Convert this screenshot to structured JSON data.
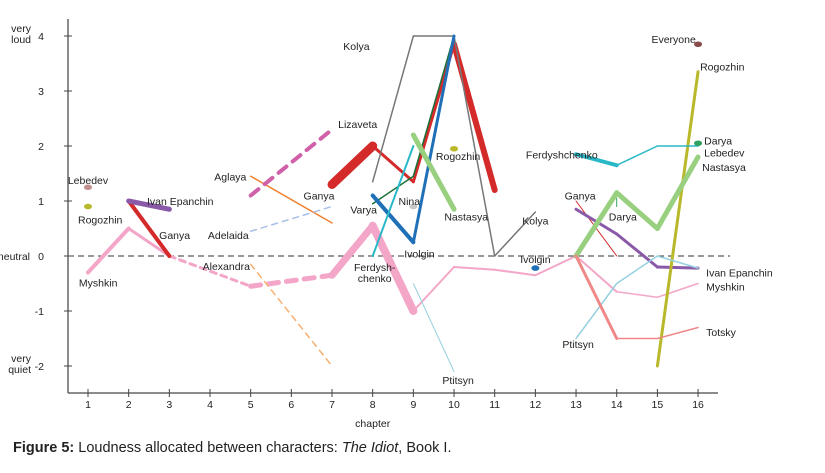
{
  "chart_data": {
    "type": "line",
    "title": "",
    "xlabel": "chapter",
    "ylabel": "",
    "xlim": [
      0.6,
      16.9
    ],
    "ylim": [
      -2.4,
      4.3
    ],
    "x_ticks": [
      1,
      2,
      3,
      4,
      5,
      6,
      7,
      8,
      9,
      10,
      11,
      12,
      13,
      14,
      15,
      16
    ],
    "y_ticks": [
      {
        "value": 4,
        "label": "4",
        "annotation": "very\nloud"
      },
      {
        "value": 3,
        "label": "3",
        "annotation": ""
      },
      {
        "value": 2,
        "label": "2",
        "annotation": ""
      },
      {
        "value": 1,
        "label": "1",
        "annotation": ""
      },
      {
        "value": 0,
        "label": "0",
        "annotation": "neutral"
      },
      {
        "value": -1,
        "label": "-1",
        "annotation": ""
      },
      {
        "value": -2,
        "label": "-2",
        "annotation": "very\nquiet"
      }
    ],
    "reference_line": {
      "value": 0,
      "style": "dashed"
    },
    "series": [
      {
        "name": "Myshkin",
        "color": "#f3a6c8",
        "points": [
          [
            1,
            -0.3
          ],
          [
            2,
            0.5
          ],
          [
            3,
            0
          ],
          [
            5,
            -0.55
          ],
          [
            7,
            -0.35
          ],
          [
            8,
            0.55
          ],
          [
            9,
            -1.0
          ],
          [
            10,
            -0.2
          ],
          [
            11,
            -0.25
          ],
          [
            12,
            -0.35
          ],
          [
            13,
            0
          ],
          [
            14,
            -0.65
          ],
          [
            15,
            -0.75
          ],
          [
            16,
            -0.5
          ]
        ],
        "widths": [
          4,
          3,
          3,
          5,
          7,
          8,
          2,
          2,
          2,
          2,
          2,
          1.5,
          1.5
        ],
        "dashed_segments": [
          2,
          3
        ]
      },
      {
        "name": "Ganya",
        "color": "#d42a2a",
        "points": [
          [
            2,
            1
          ],
          [
            3,
            0
          ]
        ],
        "widths": [
          4
        ]
      },
      {
        "name": "Ganya",
        "color": "#d42a2a",
        "points": [
          [
            7,
            1.3
          ],
          [
            8,
            2
          ],
          [
            9,
            1.35
          ],
          [
            10,
            3.85
          ],
          [
            11,
            1.2
          ]
        ],
        "widths": [
          9,
          3,
          3,
          6
        ]
      },
      {
        "name": "Ganya",
        "color": "#d42a2a",
        "points": [
          [
            13,
            1
          ],
          [
            14,
            0
          ]
        ],
        "widths": [
          1
        ]
      },
      {
        "name": "Ivan Epanchin",
        "color": "#8a5aa8",
        "points": [
          [
            2,
            1
          ],
          [
            3,
            0.85
          ]
        ],
        "widths": [
          5
        ]
      },
      {
        "name": "Ivan Epanchin",
        "color": "#8a5aa8",
        "points": [
          [
            13,
            0.85
          ],
          [
            14,
            0.4
          ],
          [
            15,
            -0.2
          ],
          [
            16,
            -0.22
          ]
        ],
        "widths": [
          3,
          3,
          3
        ]
      },
      {
        "name": "Lebedev",
        "color": "#c49090",
        "points": [
          [
            1,
            1.25
          ]
        ],
        "widths": []
      },
      {
        "name": "Rogozhin",
        "color": "#b8b82a",
        "points": [
          [
            1,
            0.9
          ]
        ],
        "widths": []
      },
      {
        "name": "Rogozhin",
        "color": "#b8b82a",
        "points": [
          [
            10,
            1.95
          ]
        ],
        "widths": []
      },
      {
        "name": "Rogozhin",
        "color": "#b8b82a",
        "points": [
          [
            15,
            -2
          ],
          [
            16,
            3.35
          ]
        ],
        "widths": [
          3
        ]
      },
      {
        "name": "Aglaya",
        "color": "#f08030",
        "points": [
          [
            5,
            1.45
          ],
          [
            7,
            0.6
          ]
        ],
        "widths": [
          1.5
        ]
      },
      {
        "name": "Lizaveta",
        "color": "#d060a8",
        "points": [
          [
            5,
            1.1
          ],
          [
            7,
            2.3
          ]
        ],
        "widths": [
          4
        ],
        "dashed_segments": [
          0
        ]
      },
      {
        "name": "Adelaida",
        "color": "#a8c0e8",
        "points": [
          [
            5,
            0.45
          ],
          [
            7,
            0.9
          ]
        ],
        "widths": [
          1.5
        ],
        "dashed_segments": [
          0
        ]
      },
      {
        "name": "Alexandra",
        "color": "#f8b070",
        "points": [
          [
            5,
            -0.15
          ],
          [
            7,
            -2.0
          ]
        ],
        "widths": [
          1.5
        ],
        "dashed_segments": [
          0
        ]
      },
      {
        "name": "Kolya",
        "color": "#777777",
        "points": [
          [
            8,
            1.35
          ],
          [
            9,
            4
          ],
          [
            10,
            4
          ],
          [
            11,
            0
          ],
          [
            12,
            0.8
          ]
        ],
        "widths": [
          1.5,
          1.5,
          1.5,
          1.5
        ]
      },
      {
        "name": "Varya",
        "color": "#1a7038",
        "points": [
          [
            8,
            0.95
          ],
          [
            9,
            1.45
          ],
          [
            10,
            4
          ]
        ],
        "widths": [
          1.5,
          1.5
        ]
      },
      {
        "name": "Ivolgin",
        "color": "#2070b8",
        "points": [
          [
            8,
            1.1
          ],
          [
            9,
            0.25
          ],
          [
            10,
            4
          ]
        ],
        "widths": [
          4,
          3
        ]
      },
      {
        "name": "Ivolgin",
        "color": "#2070b8",
        "points": [
          [
            12,
            -0.22
          ]
        ],
        "widths": []
      },
      {
        "name": "Ferdyshchenko",
        "color": "#28b8c8",
        "points": [
          [
            8,
            0
          ],
          [
            9,
            2
          ]
        ],
        "widths": [
          2
        ]
      },
      {
        "name": "Ferdyshchenko",
        "color": "#28b8c8",
        "points": [
          [
            13,
            1.85
          ],
          [
            14,
            1.65
          ],
          [
            15,
            2
          ],
          [
            16,
            2
          ]
        ],
        "widths": [
          4,
          1.5,
          1.5
        ]
      },
      {
        "name": "Nina",
        "color": "#c8c8c8",
        "points": [
          [
            9,
            0.9
          ]
        ],
        "widths": []
      },
      {
        "name": "Nastasya",
        "color": "#98d080",
        "points": [
          [
            9,
            2.2
          ],
          [
            10,
            0.85
          ]
        ],
        "widths": [
          5
        ]
      },
      {
        "name": "Nastasya",
        "color": "#98d080",
        "points": [
          [
            13,
            0
          ],
          [
            14,
            1.15
          ],
          [
            15,
            0.5
          ],
          [
            16,
            1.8
          ]
        ],
        "widths": [
          5,
          5,
          5
        ]
      },
      {
        "name": "Ptitsyn",
        "color": "#98d0e0",
        "points": [
          [
            9,
            -0.5
          ],
          [
            10,
            -2.1
          ]
        ],
        "widths": [
          1
        ]
      },
      {
        "name": "Ptitsyn",
        "color": "#98d0e0",
        "points": [
          [
            13,
            -1.5
          ],
          [
            14,
            -0.5
          ],
          [
            15,
            0
          ],
          [
            16,
            -0.22
          ]
        ],
        "widths": [
          1.5,
          1.5,
          1.5
        ]
      },
      {
        "name": "Darya",
        "color": "#30a060",
        "points": [
          [
            14,
            1.05
          ],
          [
            14,
            0.9
          ]
        ],
        "widths": [
          1
        ]
      },
      {
        "name": "Darya",
        "color": "#30a060",
        "points": [
          [
            16,
            2.05
          ]
        ],
        "widths": []
      },
      {
        "name": "Totsky",
        "color": "#f08888",
        "points": [
          [
            13,
            0
          ],
          [
            14,
            -1.5
          ],
          [
            15,
            -1.5
          ],
          [
            16,
            -1.3
          ]
        ],
        "widths": [
          3,
          1.5,
          1.5
        ]
      },
      {
        "name": "Everyone",
        "color": "#8b4a4a",
        "points": [
          [
            16,
            3.85
          ]
        ],
        "widths": []
      }
    ],
    "labels": [
      {
        "text": "Lebedev",
        "x": 1,
        "y": 1.38,
        "anchor": "middle"
      },
      {
        "text": "Rogozhin",
        "x": 1.3,
        "y": 0.66,
        "anchor": "middle"
      },
      {
        "text": "Ivan Epanchin",
        "x": 2.45,
        "y": 1.0,
        "anchor": "start"
      },
      {
        "text": "Ganya",
        "x": 2.75,
        "y": 0.38,
        "anchor": "start"
      },
      {
        "text": "Myshkin",
        "x": 1.25,
        "y": -0.48,
        "anchor": "middle"
      },
      {
        "text": "Adelaida",
        "x": 4.45,
        "y": 0.38,
        "anchor": "middle"
      },
      {
        "text": "Aglaya",
        "x": 4.5,
        "y": 1.45,
        "anchor": "middle"
      },
      {
        "text": "Alexandra",
        "x": 4.4,
        "y": -0.18,
        "anchor": "middle"
      },
      {
        "text": "Lizaveta",
        "x": 7.15,
        "y": 2.4,
        "anchor": "start"
      },
      {
        "text": "Ganya",
        "x": 6.3,
        "y": 1.1,
        "anchor": "start"
      },
      {
        "text": "Varya",
        "x": 7.45,
        "y": 0.85,
        "anchor": "start"
      },
      {
        "text": "Ferdysh-",
        "x": 8.05,
        "y": -0.2,
        "anchor": "middle"
      },
      {
        "text": "chenko",
        "x": 8.05,
        "y": -0.4,
        "anchor": "middle"
      },
      {
        "text": "Kolya",
        "x": 7.6,
        "y": 3.82,
        "anchor": "middle"
      },
      {
        "text": "Nina",
        "x": 8.9,
        "y": 1.0,
        "anchor": "middle"
      },
      {
        "text": "Ivolgin",
        "x": 9.15,
        "y": 0.05,
        "anchor": "middle"
      },
      {
        "text": "Rogozhin",
        "x": 10.1,
        "y": 1.82,
        "anchor": "middle"
      },
      {
        "text": "Nastasya",
        "x": 10.3,
        "y": 0.72,
        "anchor": "middle"
      },
      {
        "text": "Ptitsyn",
        "x": 10.1,
        "y": -2.25,
        "anchor": "middle"
      },
      {
        "text": "Kolya",
        "x": 12.0,
        "y": 0.65,
        "anchor": "middle"
      },
      {
        "text": "Ivolgin",
        "x": 12.0,
        "y": -0.05,
        "anchor": "middle"
      },
      {
        "text": "Ferdyshchenko",
        "x": 12.65,
        "y": 1.85,
        "anchor": "middle"
      },
      {
        "text": "Ganya",
        "x": 13.1,
        "y": 1.1,
        "anchor": "middle"
      },
      {
        "text": "Darya",
        "x": 14.15,
        "y": 0.72,
        "anchor": "middle"
      },
      {
        "text": "Ptitsyn",
        "x": 13.05,
        "y": -1.6,
        "anchor": "middle"
      },
      {
        "text": "Everyone",
        "x": 15.4,
        "y": 3.95,
        "anchor": "middle"
      },
      {
        "text": "Rogozhin",
        "x": 16.05,
        "y": 3.45,
        "anchor": "start"
      },
      {
        "text": "Darya",
        "x": 16.15,
        "y": 2.1,
        "anchor": "start"
      },
      {
        "text": "Lebedev",
        "x": 16.15,
        "y": 1.88,
        "anchor": "start"
      },
      {
        "text": "Nastasya",
        "x": 16.1,
        "y": 1.62,
        "anchor": "start"
      },
      {
        "text": "Ivan Epanchin",
        "x": 16.2,
        "y": -0.3,
        "anchor": "start"
      },
      {
        "text": "Myshkin",
        "x": 16.2,
        "y": -0.55,
        "anchor": "start"
      },
      {
        "text": "Totsky",
        "x": 16.2,
        "y": -1.38,
        "anchor": "start"
      }
    ]
  },
  "caption": {
    "prefix": "Figure 5:",
    "text": " Loudness allocated between characters: ",
    "title": "The Idiot",
    "suffix": ", Book I."
  }
}
